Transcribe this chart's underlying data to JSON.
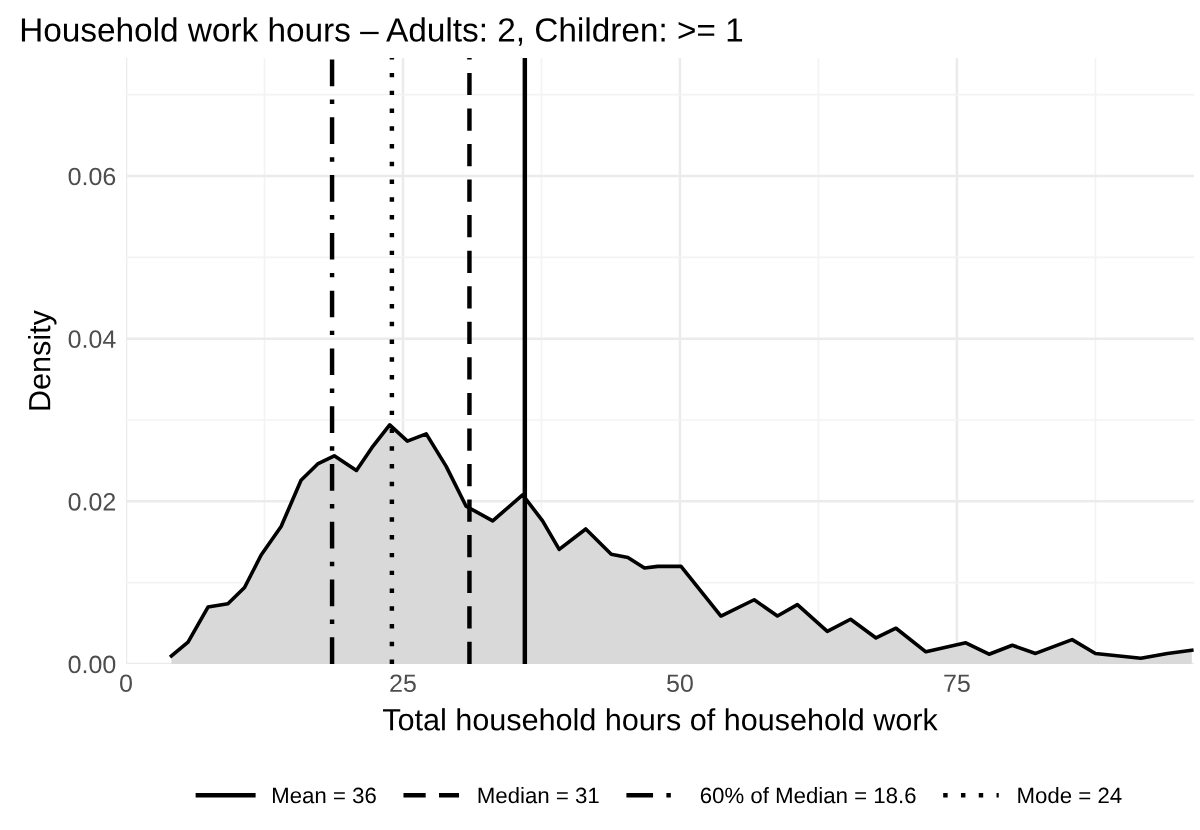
{
  "chart_data": {
    "type": "area",
    "title": "Household work hours – Adults: 2, Children: >= 1",
    "xlabel": "Total household hours of household work",
    "ylabel": "Density",
    "series": [
      {
        "color": "#d9d9d9",
        "x": [
          4.1,
          5.6,
          7.4,
          9.2,
          10.7,
          12.2,
          14.0,
          15.8,
          17.3,
          18.8,
          20.8,
          22.3,
          23.8,
          25.4,
          27.1,
          28.9,
          30.7,
          33.1,
          35.8,
          37.6,
          39.1,
          41.5,
          43.8,
          45.3,
          46.8,
          48.0,
          50.1,
          53.7,
          56.7,
          58.8,
          60.6,
          63.3,
          65.4,
          67.7,
          69.5,
          72.2,
          75.8,
          77.9,
          80.0,
          82.1,
          85.4,
          87.5,
          91.6,
          94.0,
          96.2
        ],
        "values": [
          0.001,
          0.0027,
          0.007,
          0.0074,
          0.0094,
          0.0134,
          0.0169,
          0.0226,
          0.0246,
          0.0256,
          0.0238,
          0.0268,
          0.0294,
          0.0274,
          0.0283,
          0.0243,
          0.0194,
          0.0176,
          0.0208,
          0.0176,
          0.0141,
          0.0166,
          0.0135,
          0.0131,
          0.0118,
          0.012,
          0.012,
          0.0059,
          0.0079,
          0.0059,
          0.0073,
          0.004,
          0.0055,
          0.0032,
          0.0044,
          0.0015,
          0.0026,
          0.0012,
          0.0023,
          0.0013,
          0.003,
          0.0013,
          0.0007,
          0.0013,
          0.0017
        ]
      }
    ],
    "xlim": [
      0,
      96.4
    ],
    "ylim": [
      0,
      0.0745
    ],
    "xticks": [
      0,
      25,
      50,
      75
    ],
    "yticks": [
      {
        "value": 0,
        "label": "0.00"
      },
      {
        "value": 0.02,
        "label": "0.02"
      },
      {
        "value": 0.04,
        "label": "0.04"
      },
      {
        "value": 0.06,
        "label": "0.06"
      }
    ],
    "ref_lines": [
      {
        "axis": "x",
        "value": 36,
        "label": "Mean = 36",
        "line_style": "solid",
        "color": "#000000"
      },
      {
        "axis": "x",
        "value": 31,
        "label": "Median = 31",
        "line_style": "dashed",
        "color": "#000000"
      },
      {
        "axis": "x",
        "value": 18.6,
        "label": "60% of Median = 18.6",
        "line_style": "dashdot",
        "color": "#000000"
      },
      {
        "axis": "x",
        "value": 24,
        "label": "Mode = 24",
        "line_style": "dotted",
        "color": "#000000"
      }
    ],
    "grid": true,
    "legend": "bottom"
  }
}
